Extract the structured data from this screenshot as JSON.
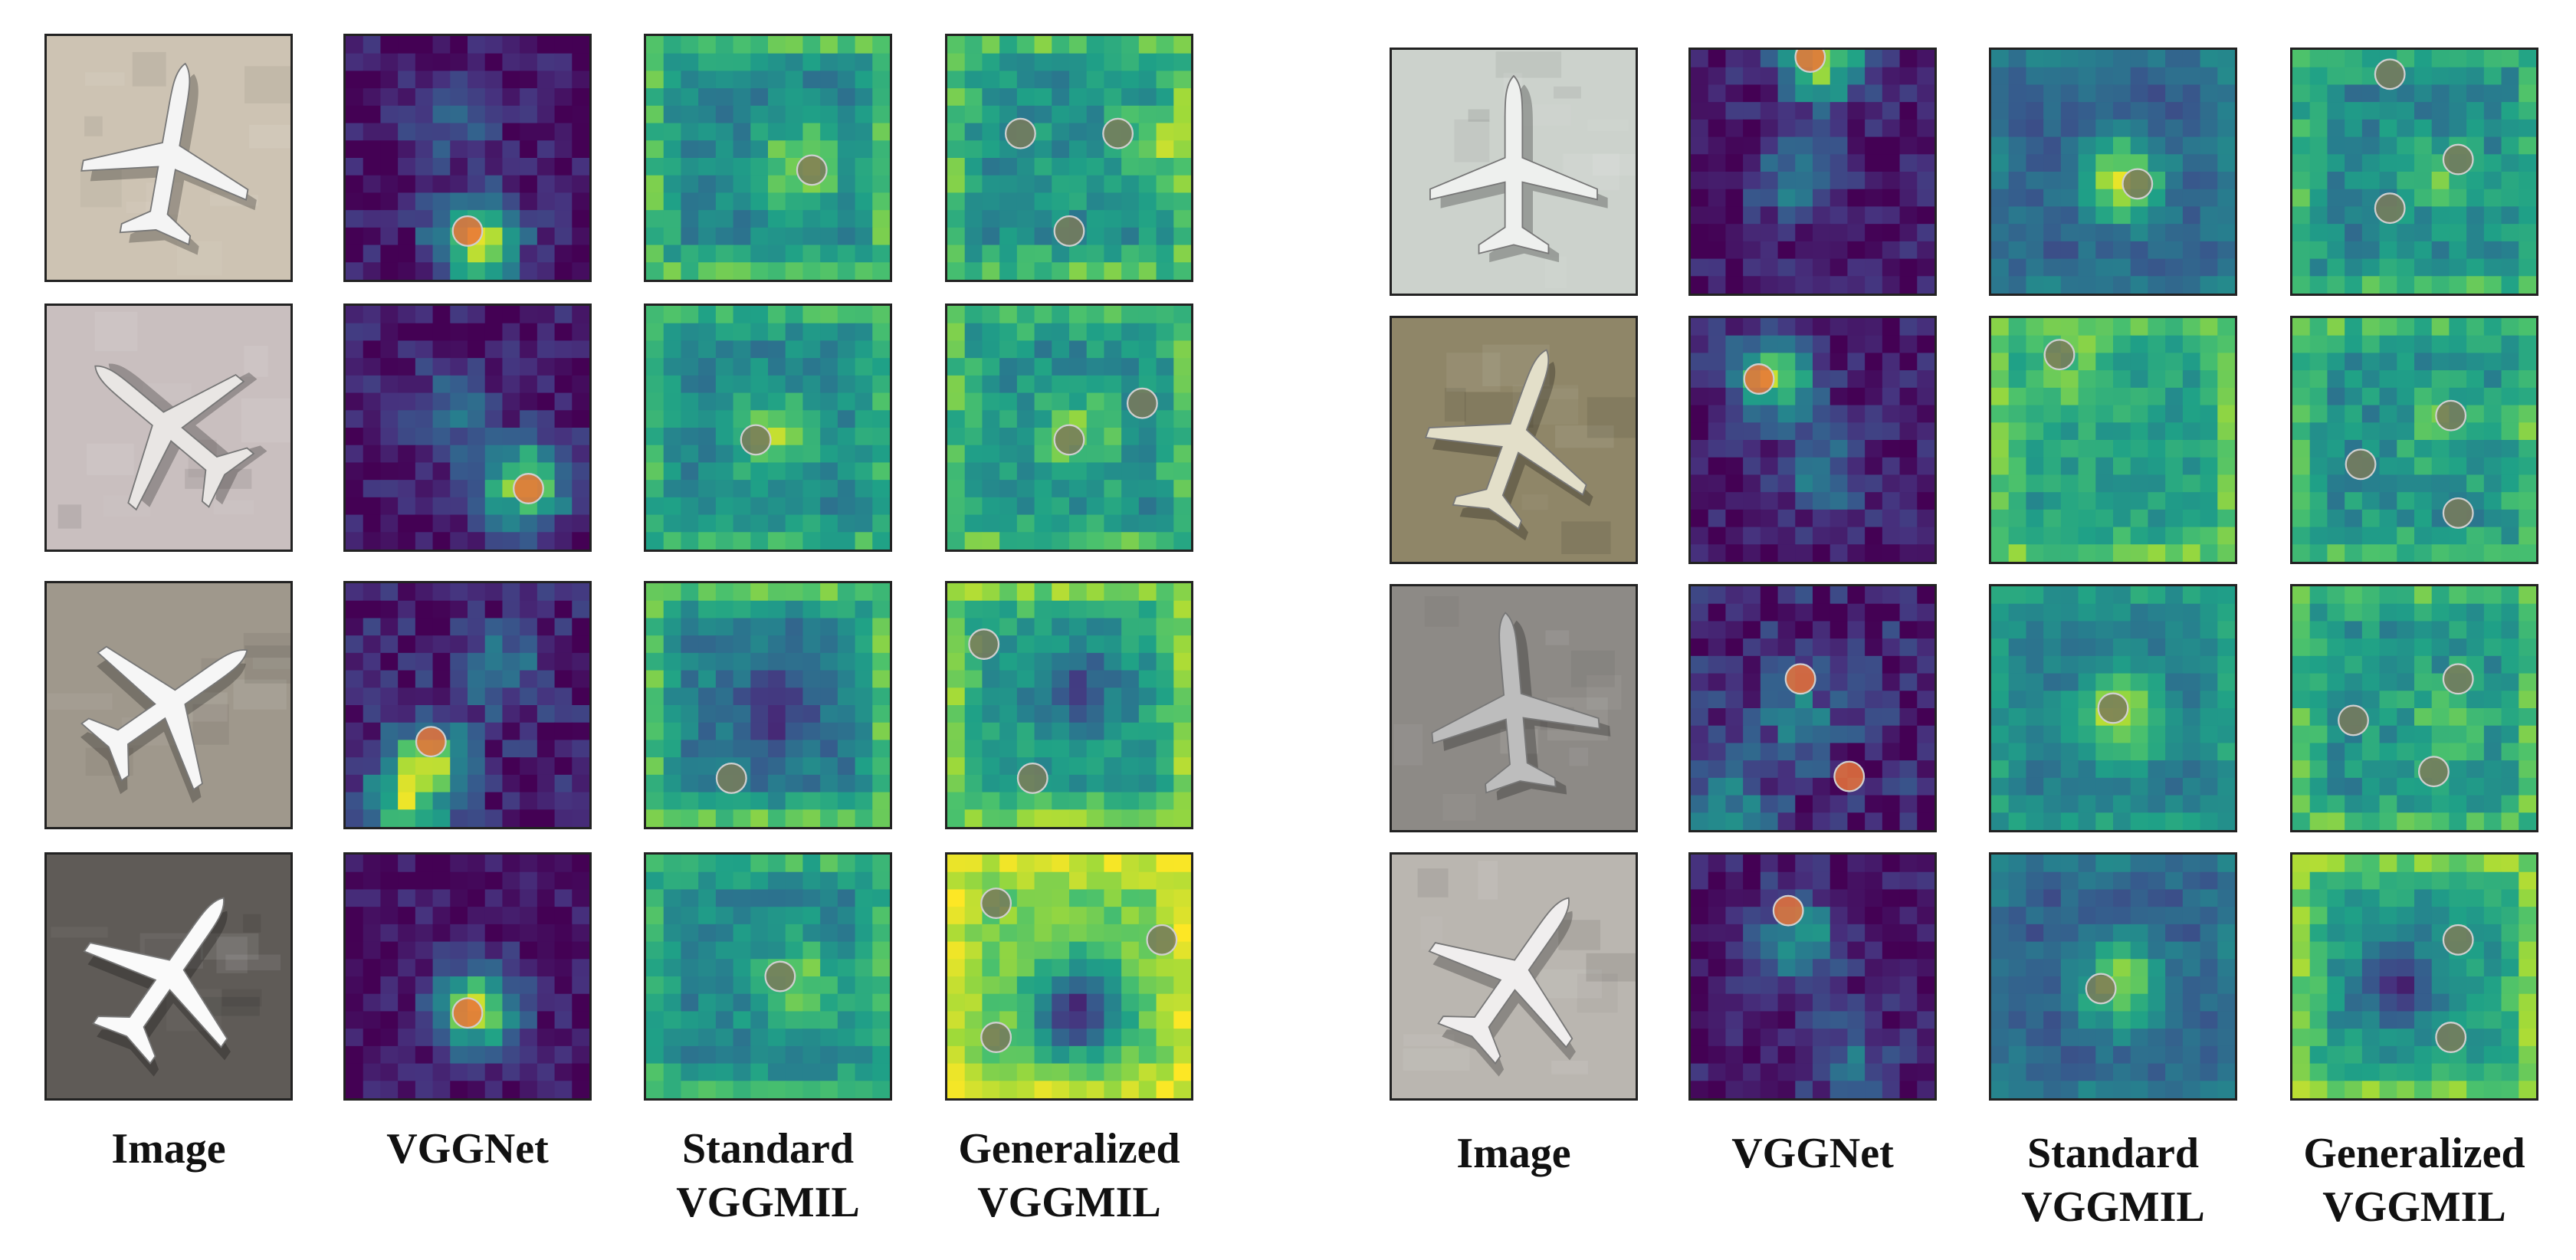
{
  "panels": [
    {
      "column_labels": [
        {
          "lines": [
            "Image"
          ]
        },
        {
          "lines": [
            "VGGNet"
          ]
        },
        {
          "lines": [
            "Standard",
            "VGGMIL"
          ]
        },
        {
          "lines": [
            "Generalized",
            "VGGMIL"
          ]
        }
      ]
    },
    {
      "column_labels": [
        {
          "lines": [
            "Image"
          ]
        },
        {
          "lines": [
            "VGGNet"
          ]
        },
        {
          "lines": [
            "Standard",
            "VGGMIL"
          ]
        },
        {
          "lines": [
            "Generalized",
            "VGGMIL"
          ]
        }
      ]
    }
  ],
  "colors": {
    "viridis": [
      "#440154",
      "#46327e",
      "#365c8d",
      "#277f8e",
      "#1fa187",
      "#4ac16d",
      "#a0da39",
      "#fde725"
    ],
    "vgg_marker": "#e8733a",
    "mil_marker": "#7a7a5a",
    "frame": "#222222"
  },
  "rows": [
    {
      "panel": 0,
      "row": 0,
      "image": {
        "ground": "#cdc3b3",
        "plane_angle": -80,
        "plane_color": "#f4f4f4"
      },
      "vggnet": {
        "base": 0.05,
        "noise": 0.12,
        "peaks": [
          {
            "r": 8,
            "c": 5,
            "a": 0.85
          },
          {
            "r": 3,
            "c": 4,
            "a": 0.25
          }
        ],
        "markers": [
          {
            "r": 8,
            "c": 5
          }
        ]
      },
      "standard": {
        "base": 0.45,
        "noise": 0.1,
        "border": 0.25,
        "peaks": [
          {
            "r": 5,
            "c": 6,
            "a": 0.4
          }
        ],
        "markers": [
          {
            "r": 5.5,
            "c": 6.8
          }
        ]
      },
      "generalized": {
        "base": 0.5,
        "noise": 0.12,
        "border": 0.2,
        "peaks": [
          {
            "r": 4,
            "c": 8,
            "a": 0.25
          }
        ],
        "markers": [
          {
            "r": 4,
            "c": 3
          },
          {
            "r": 4,
            "c": 7
          },
          {
            "r": 8,
            "c": 5
          }
        ]
      }
    },
    {
      "panel": 0,
      "row": 1,
      "image": {
        "ground": "#c9bfbf",
        "plane_angle": -140,
        "plane_color": "#e9e6e4"
      },
      "vggnet": {
        "base": 0.06,
        "noise": 0.12,
        "peaks": [
          {
            "r": 7,
            "c": 7,
            "a": 0.8
          },
          {
            "r": 4,
            "c": 4,
            "a": 0.3
          }
        ],
        "markers": [
          {
            "r": 7.5,
            "c": 7.5
          }
        ]
      },
      "standard": {
        "base": 0.45,
        "noise": 0.1,
        "border": 0.2,
        "peaks": [
          {
            "r": 5,
            "c": 5,
            "a": 0.4
          }
        ],
        "markers": [
          {
            "r": 5.5,
            "c": 4.5
          }
        ]
      },
      "generalized": {
        "base": 0.5,
        "noise": 0.12,
        "border": 0.2,
        "peaks": [
          {
            "r": 5,
            "c": 5,
            "a": 0.3
          }
        ],
        "markers": [
          {
            "r": 5.5,
            "c": 5
          },
          {
            "r": 4,
            "c": 8
          }
        ]
      }
    },
    {
      "panel": 0,
      "row": 2,
      "image": {
        "ground": "#9f988c",
        "plane_angle": -35,
        "plane_color": "#f6f6f6"
      },
      "vggnet": {
        "base": 0.08,
        "noise": 0.14,
        "peaks": [
          {
            "r": 7,
            "c": 3,
            "a": 0.7
          },
          {
            "r": 9,
            "c": 2,
            "a": 0.55
          },
          {
            "r": 3,
            "c": 6,
            "a": 0.3
          }
        ],
        "markers": [
          {
            "r": 6.5,
            "c": 3.5
          }
        ]
      },
      "standard": {
        "base": 0.42,
        "noise": 0.1,
        "border": 0.3,
        "peaks": [
          {
            "r": 5,
            "c": 5,
            "a": -0.3
          }
        ],
        "markers": [
          {
            "r": 8,
            "c": 3.5
          }
        ]
      },
      "generalized": {
        "base": 0.55,
        "noise": 0.1,
        "border": 0.25,
        "peaks": [
          {
            "r": 4,
            "c": 5,
            "a": -0.3
          }
        ],
        "markers": [
          {
            "r": 2.5,
            "c": 1.5
          },
          {
            "r": 8,
            "c": 3.5
          }
        ]
      }
    },
    {
      "panel": 0,
      "row": 3,
      "image": {
        "ground": "#5f5b57",
        "plane_angle": -55,
        "plane_color": "#fafafa"
      },
      "vggnet": {
        "base": 0.05,
        "noise": 0.1,
        "peaks": [
          {
            "r": 6,
            "c": 5,
            "a": 0.8
          }
        ],
        "markers": [
          {
            "r": 6.5,
            "c": 5
          }
        ]
      },
      "standard": {
        "base": 0.45,
        "noise": 0.1,
        "border": 0.2,
        "peaks": [
          {
            "r": 5,
            "c": 6,
            "a": 0.35
          }
        ],
        "markers": [
          {
            "r": 5,
            "c": 5.5
          }
        ]
      },
      "generalized": {
        "base": 0.78,
        "noise": 0.08,
        "border": 0.15,
        "peaks": [
          {
            "r": 6,
            "c": 5,
            "a": -0.7
          }
        ],
        "markers": [
          {
            "r": 2,
            "c": 2
          },
          {
            "r": 3.5,
            "c": 8.8
          },
          {
            "r": 7.5,
            "c": 2
          }
        ]
      }
    },
    {
      "panel": 1,
      "row": 0,
      "image": {
        "ground": "#ccd2cc",
        "plane_angle": -90,
        "plane_color": "#eef0ee"
      },
      "vggnet": {
        "base": 0.06,
        "noise": 0.12,
        "peaks": [
          {
            "r": 5,
            "c": 4,
            "a": 0.35
          },
          {
            "r": 0,
            "c": 5,
            "a": 0.8
          }
        ],
        "markers": [
          {
            "r": 0.3,
            "c": 4.9
          }
        ]
      },
      "standard": {
        "base": 0.3,
        "noise": 0.08,
        "border": 0.1,
        "peaks": [
          {
            "r": 5,
            "c": 5,
            "a": 0.6
          }
        ],
        "markers": [
          {
            "r": 5.5,
            "c": 6
          }
        ]
      },
      "generalized": {
        "base": 0.45,
        "noise": 0.12,
        "border": 0.2,
        "peaks": [
          {
            "r": 5,
            "c": 6,
            "a": 0.25
          }
        ],
        "markers": [
          {
            "r": 1,
            "c": 4
          },
          {
            "r": 4.5,
            "c": 6.8
          },
          {
            "r": 6.5,
            "c": 4
          }
        ]
      }
    },
    {
      "panel": 1,
      "row": 1,
      "image": {
        "ground": "#8f8668",
        "plane_angle": -70,
        "plane_color": "#e3dfc9"
      },
      "vggnet": {
        "base": 0.06,
        "noise": 0.12,
        "peaks": [
          {
            "r": 2,
            "c": 3,
            "a": 0.75
          },
          {
            "r": 6,
            "c": 5,
            "a": 0.35
          }
        ],
        "markers": [
          {
            "r": 2.5,
            "c": 2.8
          }
        ]
      },
      "standard": {
        "base": 0.55,
        "noise": 0.1,
        "border": 0.2,
        "peaks": [
          {
            "r": 2,
            "c": 3,
            "a": 0.2
          }
        ],
        "markers": [
          {
            "r": 1.5,
            "c": 2.8
          }
        ]
      },
      "generalized": {
        "base": 0.5,
        "noise": 0.12,
        "border": 0.2,
        "peaks": [
          {
            "r": 4,
            "c": 6,
            "a": 0.2
          }
        ],
        "markers": [
          {
            "r": 4,
            "c": 6.5
          },
          {
            "r": 6,
            "c": 2.8
          },
          {
            "r": 8,
            "c": 6.8
          }
        ]
      }
    },
    {
      "panel": 1,
      "row": 2,
      "image": {
        "ground": "#8d8a86",
        "plane_angle": -95,
        "plane_color": "#bdbdbd"
      },
      "vggnet": {
        "base": 0.1,
        "noise": 0.16,
        "peaks": [
          {
            "r": 5,
            "c": 4,
            "a": 0.3
          },
          {
            "r": 9,
            "c": 1,
            "a": 0.45
          }
        ],
        "markers": [
          {
            "r": 3.8,
            "c": 4.5
          },
          {
            "r": 7.8,
            "c": 6.5
          }
        ]
      },
      "standard": {
        "base": 0.4,
        "noise": 0.08,
        "border": 0.15,
        "peaks": [
          {
            "r": 5,
            "c": 5,
            "a": 0.5
          }
        ],
        "markers": [
          {
            "r": 5,
            "c": 5
          }
        ]
      },
      "generalized": {
        "base": 0.5,
        "noise": 0.12,
        "border": 0.2,
        "peaks": [
          {
            "r": 5,
            "c": 6,
            "a": 0.2
          }
        ],
        "markers": [
          {
            "r": 3.8,
            "c": 6.8
          },
          {
            "r": 5.5,
            "c": 2.5
          },
          {
            "r": 7.6,
            "c": 5.8
          }
        ]
      }
    },
    {
      "panel": 1,
      "row": 3,
      "image": {
        "ground": "#bab6b0",
        "plane_angle": -55,
        "plane_color": "#f0eeee"
      },
      "vggnet": {
        "base": 0.05,
        "noise": 0.12,
        "peaks": [
          {
            "r": 3,
            "c": 4,
            "a": 0.5
          },
          {
            "r": 8,
            "c": 6,
            "a": 0.3
          }
        ],
        "markers": [
          {
            "r": 2.3,
            "c": 4
          }
        ]
      },
      "standard": {
        "base": 0.3,
        "noise": 0.08,
        "border": 0.1,
        "peaks": [
          {
            "r": 5,
            "c": 5,
            "a": 0.55
          }
        ],
        "markers": [
          {
            "r": 5.5,
            "c": 4.5
          }
        ]
      },
      "generalized": {
        "base": 0.55,
        "noise": 0.1,
        "border": 0.25,
        "peaks": [
          {
            "r": 5,
            "c": 4,
            "a": -0.4
          }
        ],
        "markers": [
          {
            "r": 3.5,
            "c": 6.8
          },
          {
            "r": 7.5,
            "c": 6.5
          }
        ]
      }
    }
  ]
}
